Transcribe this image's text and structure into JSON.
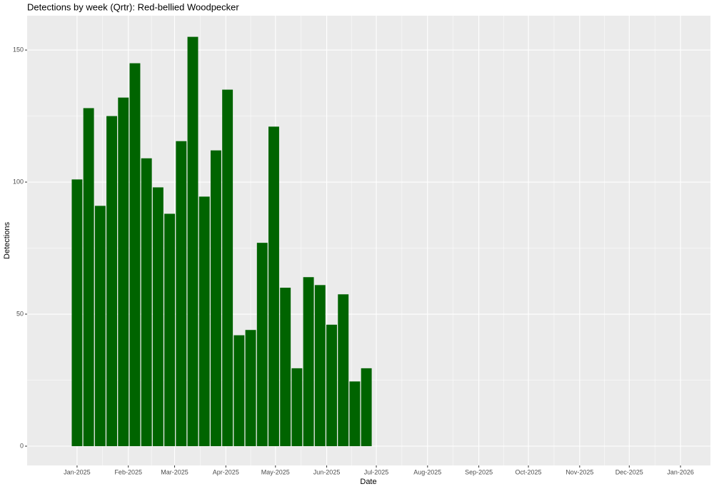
{
  "chart_data": {
    "type": "bar",
    "title": "Detections by week (Qrtr): Red-bellied Woodpecker",
    "x_label": "Date",
    "y_label": "Detections",
    "x": [
      0,
      7,
      14,
      21,
      28,
      35,
      42,
      49,
      56,
      63,
      70,
      77,
      84,
      91,
      98,
      105,
      112,
      119,
      126,
      133,
      140,
      147,
      154,
      161,
      168,
      175
    ],
    "values": [
      101,
      128,
      91,
      125,
      132,
      145,
      109,
      98,
      88,
      115.5,
      155,
      94.5,
      112,
      135,
      42,
      44,
      77,
      121,
      60,
      29.5,
      64,
      61,
      46,
      57.5,
      24.5,
      29.5
    ],
    "color": "#006400",
    "xlim": [
      -30.2,
      383.1
    ],
    "xticks": [
      {
        "value": 0,
        "label": "Jan-2025"
      },
      {
        "value": 31,
        "label": "Feb-2025"
      },
      {
        "value": 59,
        "label": "Mar-2025"
      },
      {
        "value": 90,
        "label": "Apr-2025"
      },
      {
        "value": 120,
        "label": "May-2025"
      },
      {
        "value": 151,
        "label": "Jun-2025"
      },
      {
        "value": 181,
        "label": "Jul-2025"
      },
      {
        "value": 212,
        "label": "Aug-2025"
      },
      {
        "value": 243,
        "label": "Sep-2025"
      },
      {
        "value": 273,
        "label": "Oct-2025"
      },
      {
        "value": 304,
        "label": "Nov-2025"
      },
      {
        "value": 334,
        "label": "Dec-2025"
      },
      {
        "value": 365,
        "label": "Jan-2026"
      }
    ],
    "ylim": [
      -7.3,
      163
    ],
    "yticks": [
      0,
      50,
      100,
      150
    ],
    "grid": true
  }
}
